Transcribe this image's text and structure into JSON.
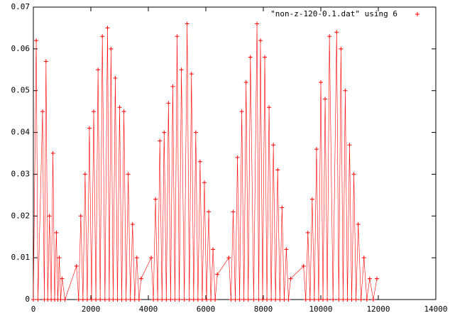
{
  "chart_data": {
    "type": "scatter",
    "marker": "+",
    "legend_position": "top-right",
    "xlim": [
      0,
      14000
    ],
    "xticks": [
      0,
      2000,
      4000,
      6000,
      8000,
      10000,
      12000,
      14000
    ],
    "ylim": [
      0,
      0.07
    ],
    "yticks": [
      0,
      0.01,
      0.02,
      0.03,
      0.04,
      0.05,
      0.06,
      0.07
    ],
    "series": [
      {
        "name": "\"non-z-120-0.1.dat\" using 6",
        "color": "#ff0000",
        "x": [
          0,
          100,
          160,
          320,
          380,
          440,
          500,
          560,
          620,
          680,
          740,
          800,
          850,
          900,
          950,
          1000,
          1100,
          1500,
          1575,
          1650,
          1725,
          1800,
          1875,
          1950,
          2025,
          2100,
          2175,
          2250,
          2325,
          2400,
          2490,
          2580,
          2640,
          2700,
          2775,
          2850,
          2925,
          3000,
          3075,
          3150,
          3225,
          3300,
          3375,
          3450,
          3525,
          3600,
          3675,
          3750,
          4100,
          4175,
          4250,
          4325,
          4400,
          4475,
          4550,
          4625,
          4700,
          4775,
          4850,
          4925,
          5000,
          5075,
          5150,
          5250,
          5350,
          5425,
          5500,
          5575,
          5650,
          5725,
          5800,
          5875,
          5950,
          6025,
          6100,
          6175,
          6250,
          6325,
          6400,
          6800,
          6875,
          6950,
          7025,
          7100,
          7175,
          7250,
          7325,
          7400,
          7475,
          7550,
          7665,
          7780,
          7840,
          7900,
          7975,
          8050,
          8125,
          8200,
          8275,
          8350,
          8425,
          8500,
          8575,
          8650,
          8725,
          8800,
          8875,
          8950,
          9400,
          9475,
          9550,
          9625,
          9700,
          9775,
          9850,
          9925,
          10000,
          10075,
          10150,
          10225,
          10300,
          10425,
          10550,
          10625,
          10700,
          10775,
          10850,
          10925,
          11000,
          11075,
          11150,
          11225,
          11300,
          11400,
          11500,
          11600,
          11700,
          11825,
          11950
        ],
        "values": [
          0,
          0.062,
          0,
          0.045,
          0,
          0.057,
          0,
          0.02,
          0,
          0.035,
          0,
          0.016,
          0,
          0.01,
          0,
          0.005,
          0,
          0.008,
          0,
          0.02,
          0,
          0.03,
          0,
          0.041,
          0,
          0.045,
          0,
          0.055,
          0,
          0.063,
          0,
          0.065,
          0,
          0.06,
          0,
          0.053,
          0,
          0.046,
          0,
          0.045,
          0,
          0.03,
          0,
          0.018,
          0,
          0.01,
          0,
          0.005,
          0.01,
          0,
          0.024,
          0,
          0.038,
          0,
          0.04,
          0,
          0.047,
          0,
          0.051,
          0,
          0.063,
          0,
          0.055,
          0,
          0.066,
          0,
          0.054,
          0,
          0.04,
          0,
          0.033,
          0,
          0.028,
          0,
          0.021,
          0,
          0.012,
          0,
          0.006,
          0.01,
          0,
          0.021,
          0,
          0.034,
          0,
          0.045,
          0,
          0.052,
          0,
          0.058,
          0,
          0.066,
          0,
          0.062,
          0,
          0.058,
          0,
          0.046,
          0,
          0.037,
          0,
          0.031,
          0,
          0.022,
          0,
          0.012,
          0,
          0.005,
          0.008,
          0,
          0.016,
          0,
          0.024,
          0,
          0.036,
          0,
          0.052,
          0,
          0.048,
          0,
          0.063,
          0,
          0.064,
          0,
          0.06,
          0,
          0.05,
          0,
          0.037,
          0,
          0.03,
          0,
          0.018,
          0,
          0.01,
          0,
          0.005,
          0,
          0.005
        ]
      }
    ]
  }
}
